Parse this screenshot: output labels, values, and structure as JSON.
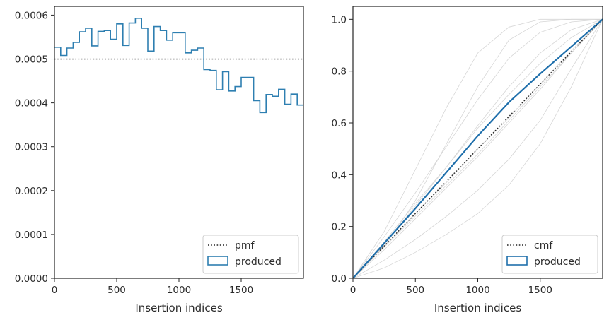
{
  "chart_data": [
    {
      "type": "step",
      "xlabel": "Insertion indices",
      "ylabel": "",
      "xlim": [
        0,
        2000
      ],
      "ylim": [
        0,
        0.00062
      ],
      "xticks": [
        0,
        500,
        1000,
        1500
      ],
      "xtick_labels": [
        "0",
        "500",
        "1000",
        "1500"
      ],
      "yticks": [
        0,
        0.0001,
        0.0002,
        0.0003,
        0.0004,
        0.0005,
        0.0006
      ],
      "ytick_labels": [
        "0.0000",
        "0.0001",
        "0.0002",
        "0.0003",
        "0.0004",
        "0.0005",
        "0.0006"
      ],
      "reference_line": {
        "name": "pmf",
        "y": 0.0005,
        "style": "dotted",
        "color": "#222222"
      },
      "series": [
        {
          "name": "produced",
          "color": "#2e7fb1",
          "bin_width": 50,
          "values": [
            0.000527,
            0.000508,
            0.000525,
            0.000538,
            0.000562,
            0.00057,
            0.00053,
            0.000563,
            0.000565,
            0.000545,
            0.00058,
            0.000531,
            0.000582,
            0.000593,
            0.00057,
            0.000518,
            0.000574,
            0.000565,
            0.000543,
            0.00056,
            0.00056,
            0.000514,
            0.00052,
            0.000525,
            0.000476,
            0.000474,
            0.00043,
            0.000471,
            0.000427,
            0.000437,
            0.000458,
            0.000458,
            0.000405,
            0.000378,
            0.000419,
            0.000415,
            0.000431,
            0.000397,
            0.00042,
            0.000395
          ]
        }
      ],
      "legend": {
        "placement": "lower-right",
        "entries": [
          "pmf",
          "produced"
        ]
      }
    },
    {
      "type": "line",
      "xlabel": "Insertion indices",
      "ylabel": "",
      "xlim": [
        0,
        2000
      ],
      "ylim": [
        0,
        1.05
      ],
      "xticks": [
        0,
        500,
        1000,
        1500
      ],
      "xtick_labels": [
        "0",
        "500",
        "1000",
        "1500"
      ],
      "yticks": [
        0,
        0.2,
        0.4,
        0.6,
        0.8,
        1.0
      ],
      "ytick_labels": [
        "0.0",
        "0.2",
        "0.4",
        "0.6",
        "0.8",
        "1.0"
      ],
      "reference_line": {
        "name": "cmf",
        "points": [
          [
            0,
            0
          ],
          [
            2000,
            1
          ]
        ],
        "style": "dotted",
        "color": "#222222"
      },
      "series": [
        {
          "name": "produced",
          "color": "#1f6fab",
          "x": [
            0,
            250,
            500,
            750,
            1000,
            1250,
            1500,
            1750,
            2000
          ],
          "y": [
            0,
            0.135,
            0.27,
            0.41,
            0.55,
            0.68,
            0.79,
            0.895,
            1.0
          ]
        }
      ],
      "background_runs": {
        "color": "#d6d6d6",
        "x": [
          0,
          250,
          500,
          750,
          1000,
          1250,
          1500,
          1750,
          2000
        ],
        "runs": [
          [
            0,
            0.18,
            0.42,
            0.66,
            0.87,
            0.97,
            1.0,
            1.0,
            1.0
          ],
          [
            0,
            0.12,
            0.3,
            0.52,
            0.74,
            0.92,
            0.99,
            1.0,
            1.0
          ],
          [
            0,
            0.16,
            0.33,
            0.51,
            0.69,
            0.85,
            0.95,
            0.99,
            1.0
          ],
          [
            0,
            0.13,
            0.28,
            0.43,
            0.59,
            0.74,
            0.87,
            0.96,
            1.0
          ],
          [
            0,
            0.14,
            0.29,
            0.43,
            0.58,
            0.71,
            0.83,
            0.93,
            1.0
          ],
          [
            0,
            0.12,
            0.25,
            0.37,
            0.5,
            0.62,
            0.75,
            0.88,
            1.0
          ],
          [
            0,
            0.12,
            0.24,
            0.36,
            0.48,
            0.61,
            0.74,
            0.87,
            1.0
          ],
          [
            0,
            0.11,
            0.23,
            0.35,
            0.47,
            0.6,
            0.73,
            0.87,
            1.0
          ],
          [
            0,
            0.07,
            0.15,
            0.24,
            0.34,
            0.46,
            0.61,
            0.81,
            1.0
          ],
          [
            0,
            0.04,
            0.1,
            0.17,
            0.25,
            0.36,
            0.52,
            0.74,
            1.0
          ]
        ]
      },
      "legend": {
        "placement": "lower-right",
        "entries": [
          "cmf",
          "produced"
        ]
      }
    }
  ]
}
